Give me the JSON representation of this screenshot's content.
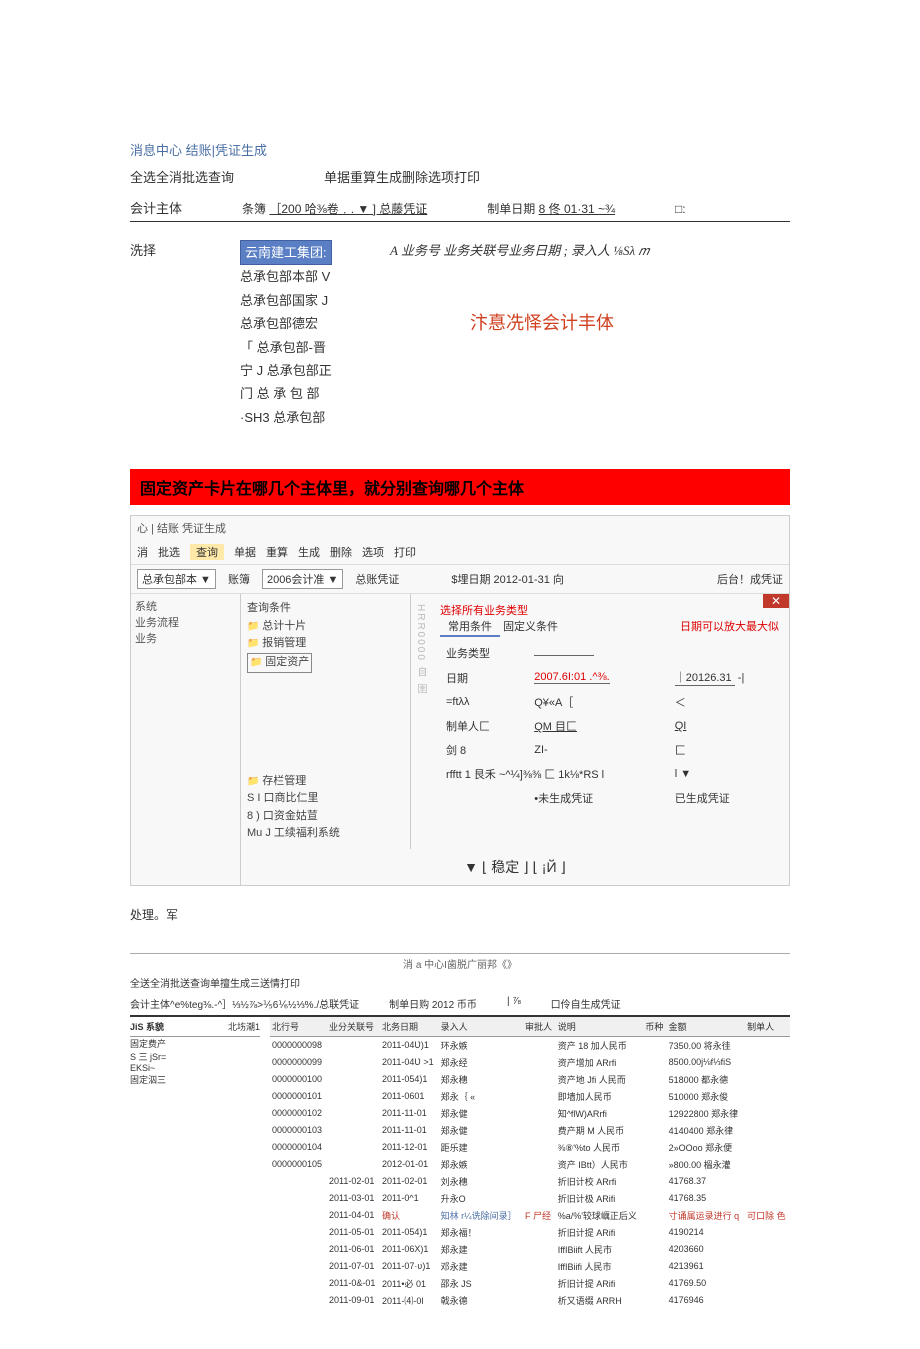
{
  "sec1": {
    "breadcrumb": "消息中心 结账|凭证生成",
    "toolbar_left": "全选全消批选查询",
    "toolbar_right": "单据重算生成删除选项打印",
    "filter": {
      "label": "会计主体",
      "book_label": "条簿",
      "book_val": "［200 哈⅜卷﹒. ▼ ] 总藤凭证",
      "date_label": "制单日期",
      "date_val": "8 佟 01·31 ~¾",
      "box": "□:"
    },
    "select_label": "洗择",
    "tree": {
      "hl": "云南建工集团:",
      "items": [
        "总承包部本部 V",
        "总承包部国家 J",
        "总承包部德宏",
        "「 总承包部-晋",
        "宁 J 总承包部正",
        "门  总 承 包 部",
        "·SH3 总承包部"
      ]
    },
    "hdr": "A 业务号 业务关联号业务日期 ; 录入人 ⅛Sλ 𝑚",
    "note": "汴惪冼怿会计丰体"
  },
  "banner": "固定资产卡片在哪几个主体里，就分别查询哪几个主体",
  "sec2": {
    "tabs": "心 | 结账   凭证生成",
    "toolbar": [
      "消",
      "批选",
      "查询",
      "单据",
      "重算",
      "生成",
      "删除",
      "选项",
      "打印"
    ],
    "row": {
      "sel1": "总承包部本 ▼",
      "lbl1": "账簿",
      "sel2": "2006会计准 ▼",
      "lbl2": "总账凭证",
      "mid": "$埋日期 2012-01-31 向",
      "right": "后台！成凭证"
    },
    "nav": [
      "系统",
      "业务流程",
      "业务"
    ],
    "tree": {
      "title": "查询条件",
      "items": [
        "总计十片",
        "报销管理",
        "固定资产"
      ],
      "bottom": [
        "存栏管理",
        "S I 口商比仁里",
        "8 ) 口资金姑荁",
        "Mu J 工续福利系统"
      ]
    },
    "vrot": "HRR0000 自 圉",
    "form": {
      "tab_a": "常用条件",
      "tab_b": "固定义条件",
      "red1": "选择所有业务类型",
      "red2": "日期可以放大最大似",
      "rows": [
        {
          "l": "业务类型",
          "v1": "",
          "v2": ""
        },
        {
          "l": "日期",
          "v1": "2007.6I:01 .^⅜.",
          "v2": "｜20126.31",
          "arrow": true
        },
        {
          "l": "=ftλλ",
          "v1": "Q¥«A［",
          "v2": "＜"
        },
        {
          "l": "制单人匚",
          "v1": "QM ⽬匚",
          "v2": "QI",
          "u": true
        },
        {
          "l": "剑 8",
          "v1": "ZI-",
          "v2": "匚"
        },
        {
          "l": "rfftt 1 ⾉禾 ~^¼]⅜⅜ 匚 1k⅛*RS l",
          "v1": "",
          "v2": "l ▼"
        },
        {
          "l": "",
          "v1": "•未生成凭证",
          "v2": "已生成凭证"
        }
      ],
      "ok": "▼ ⌊ 稳定 ⌋ ⌊ ¡Й ⌋"
    },
    "proc": "处理。军"
  },
  "sec3": {
    "bc": "消 a 中心I⻭脱广丽邦《》",
    "tb": "全送全消批送查询单擅生成三送情打印",
    "filt": {
      "a": "会计主体^e%teg⅜.-^］⅓½⅞>⅕6⅙½⅓%./总联凭证",
      "b": "制单日购 2012 币币",
      "c": "| ⅞",
      "d": "口伶自生成凭证"
    },
    "side_hdr": [
      "JiS 系貌",
      "北㘯潮1"
    ],
    "side_items": [
      "固定费产",
      "S 三 jSr=",
      "EKSi~",
      "固定泅三"
    ],
    "cols": [
      "北行号",
      "业分关联号",
      "北务日期",
      "录入人",
      "审批人",
      "说明",
      "币种",
      "金额",
      "制单人"
    ],
    "rows": [
      [
        "0000000098",
        "",
        "2011-04Ʋ)1",
        "环永嫉",
        "",
        "资产 18 加人⺠币",
        "",
        "7350.00 将永徍",
        ""
      ],
      [
        "0000000099",
        "",
        "2011-04Ʋ >1",
        "郑永经",
        "",
        "资产增加 ARrfi",
        "",
        "8500.00j⅛f⅓fiS",
        ""
      ],
      [
        "0000000100",
        "",
        "2011-054)1",
        "郑永穗",
        "",
        "资产地 Jfi    人⺠而",
        "",
        "518000 都永德",
        ""
      ],
      [
        "0000000101",
        "",
        "2011-0601",
        "郑永｛ «",
        "",
        "即墙加人⺠币",
        "",
        "510000 郑永俊",
        ""
      ],
      [
        "0000000102",
        "",
        "2011-11-01",
        "郑永健",
        "",
        "知^flW)ARrfi",
        "",
        "12922800 郑永律",
        ""
      ],
      [
        "0000000103",
        "",
        "2011-11-01",
        "郑永健",
        "",
        "费产期 M    人⺠币",
        "",
        "4140400 郑永律",
        ""
      ],
      [
        "0000000104",
        "",
        "2011-12-01",
        "距乐建",
        "",
        "⅜⑧'%to 人⺠币",
        "",
        "2»OOoo 郑永便",
        ""
      ],
      [
        "0000000105",
        "",
        "2012-01-01",
        "郑永嫉",
        "",
        "资产 IBtt）人⺠市",
        "",
        "»800.00 榲永灌",
        ""
      ],
      [
        "",
        "2011-02-01",
        "2011-02-01",
        "刘永穗",
        "",
        "折旧计校 ARrfi",
        "",
        "41768.37",
        ""
      ],
      [
        "",
        "2011-03-01",
        "2011-0^1",
        "升永O",
        "",
        "折旧计极 ARifi",
        "",
        "41768.35",
        ""
      ],
      [
        "",
        "2011-04-01",
        "确认",
        "知林 r¼诜除间录］",
        "F ⼫经",
        "%a/%'较球巁正后义",
        "",
        "寸诵属运录进行 q",
        "可⼝除 ⾊"
      ],
      [
        "",
        "2011-05-01",
        "2011-054)1",
        "郑永福！",
        "",
        "折旧计提 ARifi",
        "",
        "4190214",
        ""
      ],
      [
        "",
        "2011-06-01",
        "2011-06X)1",
        "郑永建",
        "",
        "IffIBiift      人⺠市",
        "",
        "4203660",
        ""
      ],
      [
        "",
        "2011-07-01",
        "2011-07·ʋ)1",
        "邓永建",
        "",
        "IffIBiifi      人⺠市",
        "",
        "4213961",
        ""
      ],
      [
        "",
        "2011-0&-01",
        "2011•必 01",
        "邵永 JS",
        "",
        "折旧计提 ARifi",
        "",
        "41769.50",
        ""
      ],
      [
        "",
        "2011-09-01",
        "2011-⑷-0l",
        "戟永德",
        "",
        "析⼜语缀 ARRH",
        "",
        "4176946",
        ""
      ]
    ]
  }
}
